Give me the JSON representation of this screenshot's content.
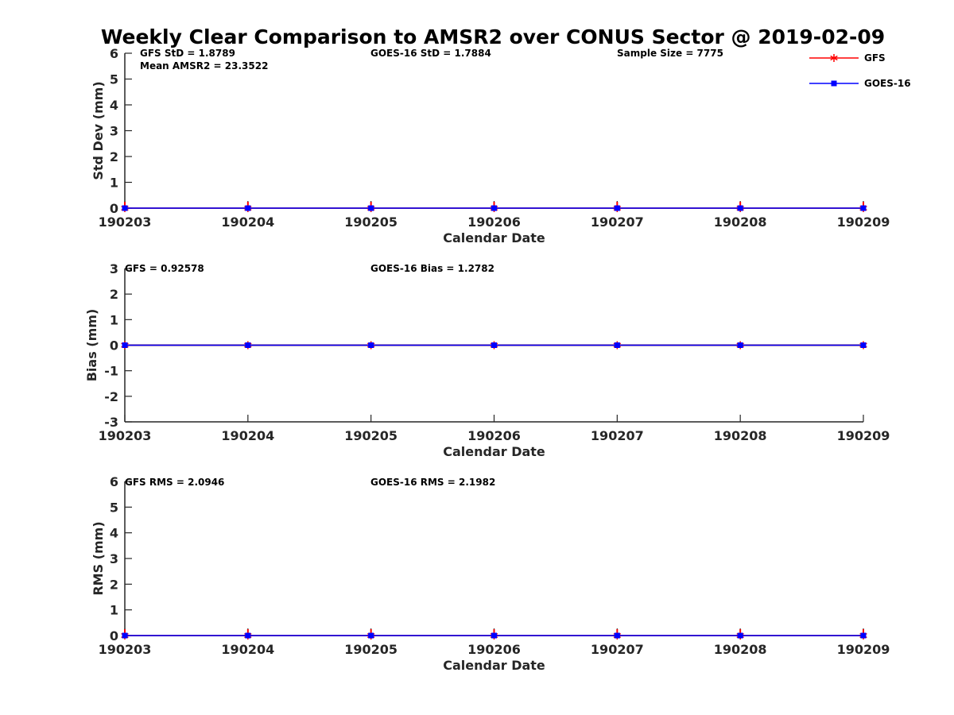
{
  "chart_data": {
    "type": "line",
    "title": "Weekly Clear Comparison to AMSR2 over CONUS Sector @ 2019-02-09",
    "legend": {
      "placement": "top-right",
      "entries": [
        {
          "name": "GFS",
          "color": "#ff0000",
          "marker": "asterisk"
        },
        {
          "name": "GOES-16",
          "color": "#0000ff",
          "marker": "square"
        }
      ]
    },
    "x": [
      "190203",
      "190204",
      "190205",
      "190206",
      "190207",
      "190208",
      "190209"
    ],
    "panels": [
      {
        "id": "std",
        "ylabel": "Std Dev (mm)",
        "xlabel": "Calendar Date",
        "ylim": [
          0,
          6
        ],
        "yticks": [
          "0",
          "1",
          "2",
          "3",
          "4",
          "5",
          "6"
        ],
        "zero_line": false,
        "annotations": [
          {
            "text": "GFS StD = 1.8789"
          },
          {
            "text": "Mean AMSR2 = 23.3522"
          },
          {
            "text": "GOES-16 StD = 1.7884"
          },
          {
            "text": "Sample Size = 7775"
          }
        ],
        "series": [
          {
            "name": "GFS",
            "values": [
              0,
              0,
              0,
              0,
              0,
              0,
              0
            ]
          },
          {
            "name": "GOES-16",
            "values": [
              0,
              0,
              0,
              0,
              0,
              0,
              0
            ]
          }
        ]
      },
      {
        "id": "bias",
        "ylabel": "Bias (mm)",
        "xlabel": "Calendar Date",
        "ylim": [
          -3,
          3
        ],
        "yticks": [
          "-3",
          "-2",
          "-1",
          "0",
          "1",
          "2",
          "3"
        ],
        "zero_line": true,
        "annotations": [
          {
            "text": "GFS = 0.92578"
          },
          {
            "text": "GOES-16 Bias  = 1.2782"
          }
        ],
        "series": [
          {
            "name": "GFS",
            "values": [
              0,
              0,
              0,
              0,
              0,
              0,
              0
            ]
          },
          {
            "name": "GOES-16",
            "values": [
              0,
              0,
              0,
              0,
              0,
              0,
              0
            ]
          }
        ]
      },
      {
        "id": "rms",
        "ylabel": "RMS (mm)",
        "xlabel": "Calendar Date",
        "ylim": [
          0,
          6
        ],
        "yticks": [
          "0",
          "1",
          "2",
          "3",
          "4",
          "5",
          "6"
        ],
        "zero_line": false,
        "annotations": [
          {
            "text": "GFS RMS = 2.0946"
          },
          {
            "text": "GOES-16 RMS = 2.1982"
          }
        ],
        "series": [
          {
            "name": "GFS",
            "values": [
              0,
              0,
              0,
              0,
              0,
              0,
              0
            ]
          },
          {
            "name": "GOES-16",
            "values": [
              0,
              0,
              0,
              0,
              0,
              0,
              0
            ]
          }
        ]
      }
    ]
  }
}
